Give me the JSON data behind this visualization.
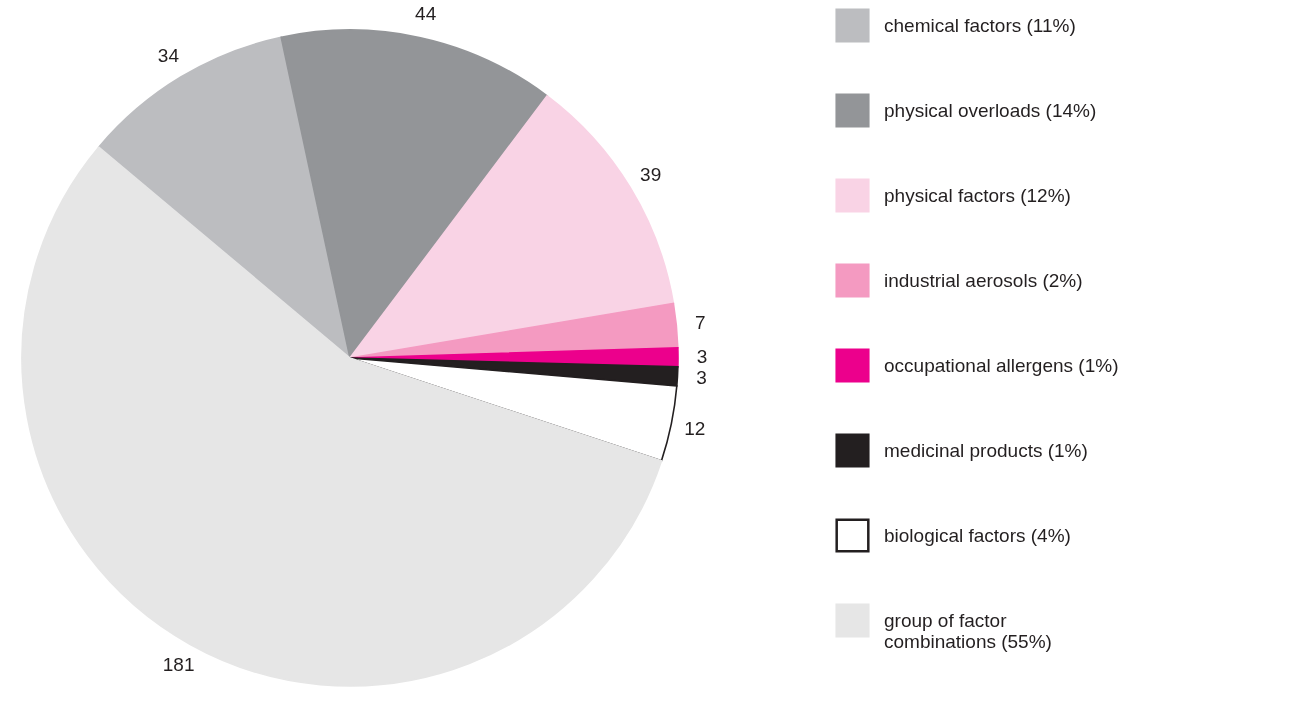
{
  "chart_data": {
    "type": "pie",
    "categories": [
      "chemical factors (11%)",
      "physical overloads (14%)",
      "physical factors (12%)",
      "industrial aerosols (2%)",
      "occupational allergens (1%)",
      "medicinal products (1%)",
      "biological factors (4%)",
      "group of factor\ncombinations (55%)"
    ],
    "values": [
      34,
      44,
      39,
      7,
      3,
      3,
      12,
      181
    ],
    "colors": [
      "#bcbdc0",
      "#939598",
      "#f9d3e5",
      "#f49ac1",
      "#ec008c",
      "#231f20",
      "#ffffff",
      "#e6e6e6"
    ],
    "data_labels": true,
    "legend": "right"
  }
}
